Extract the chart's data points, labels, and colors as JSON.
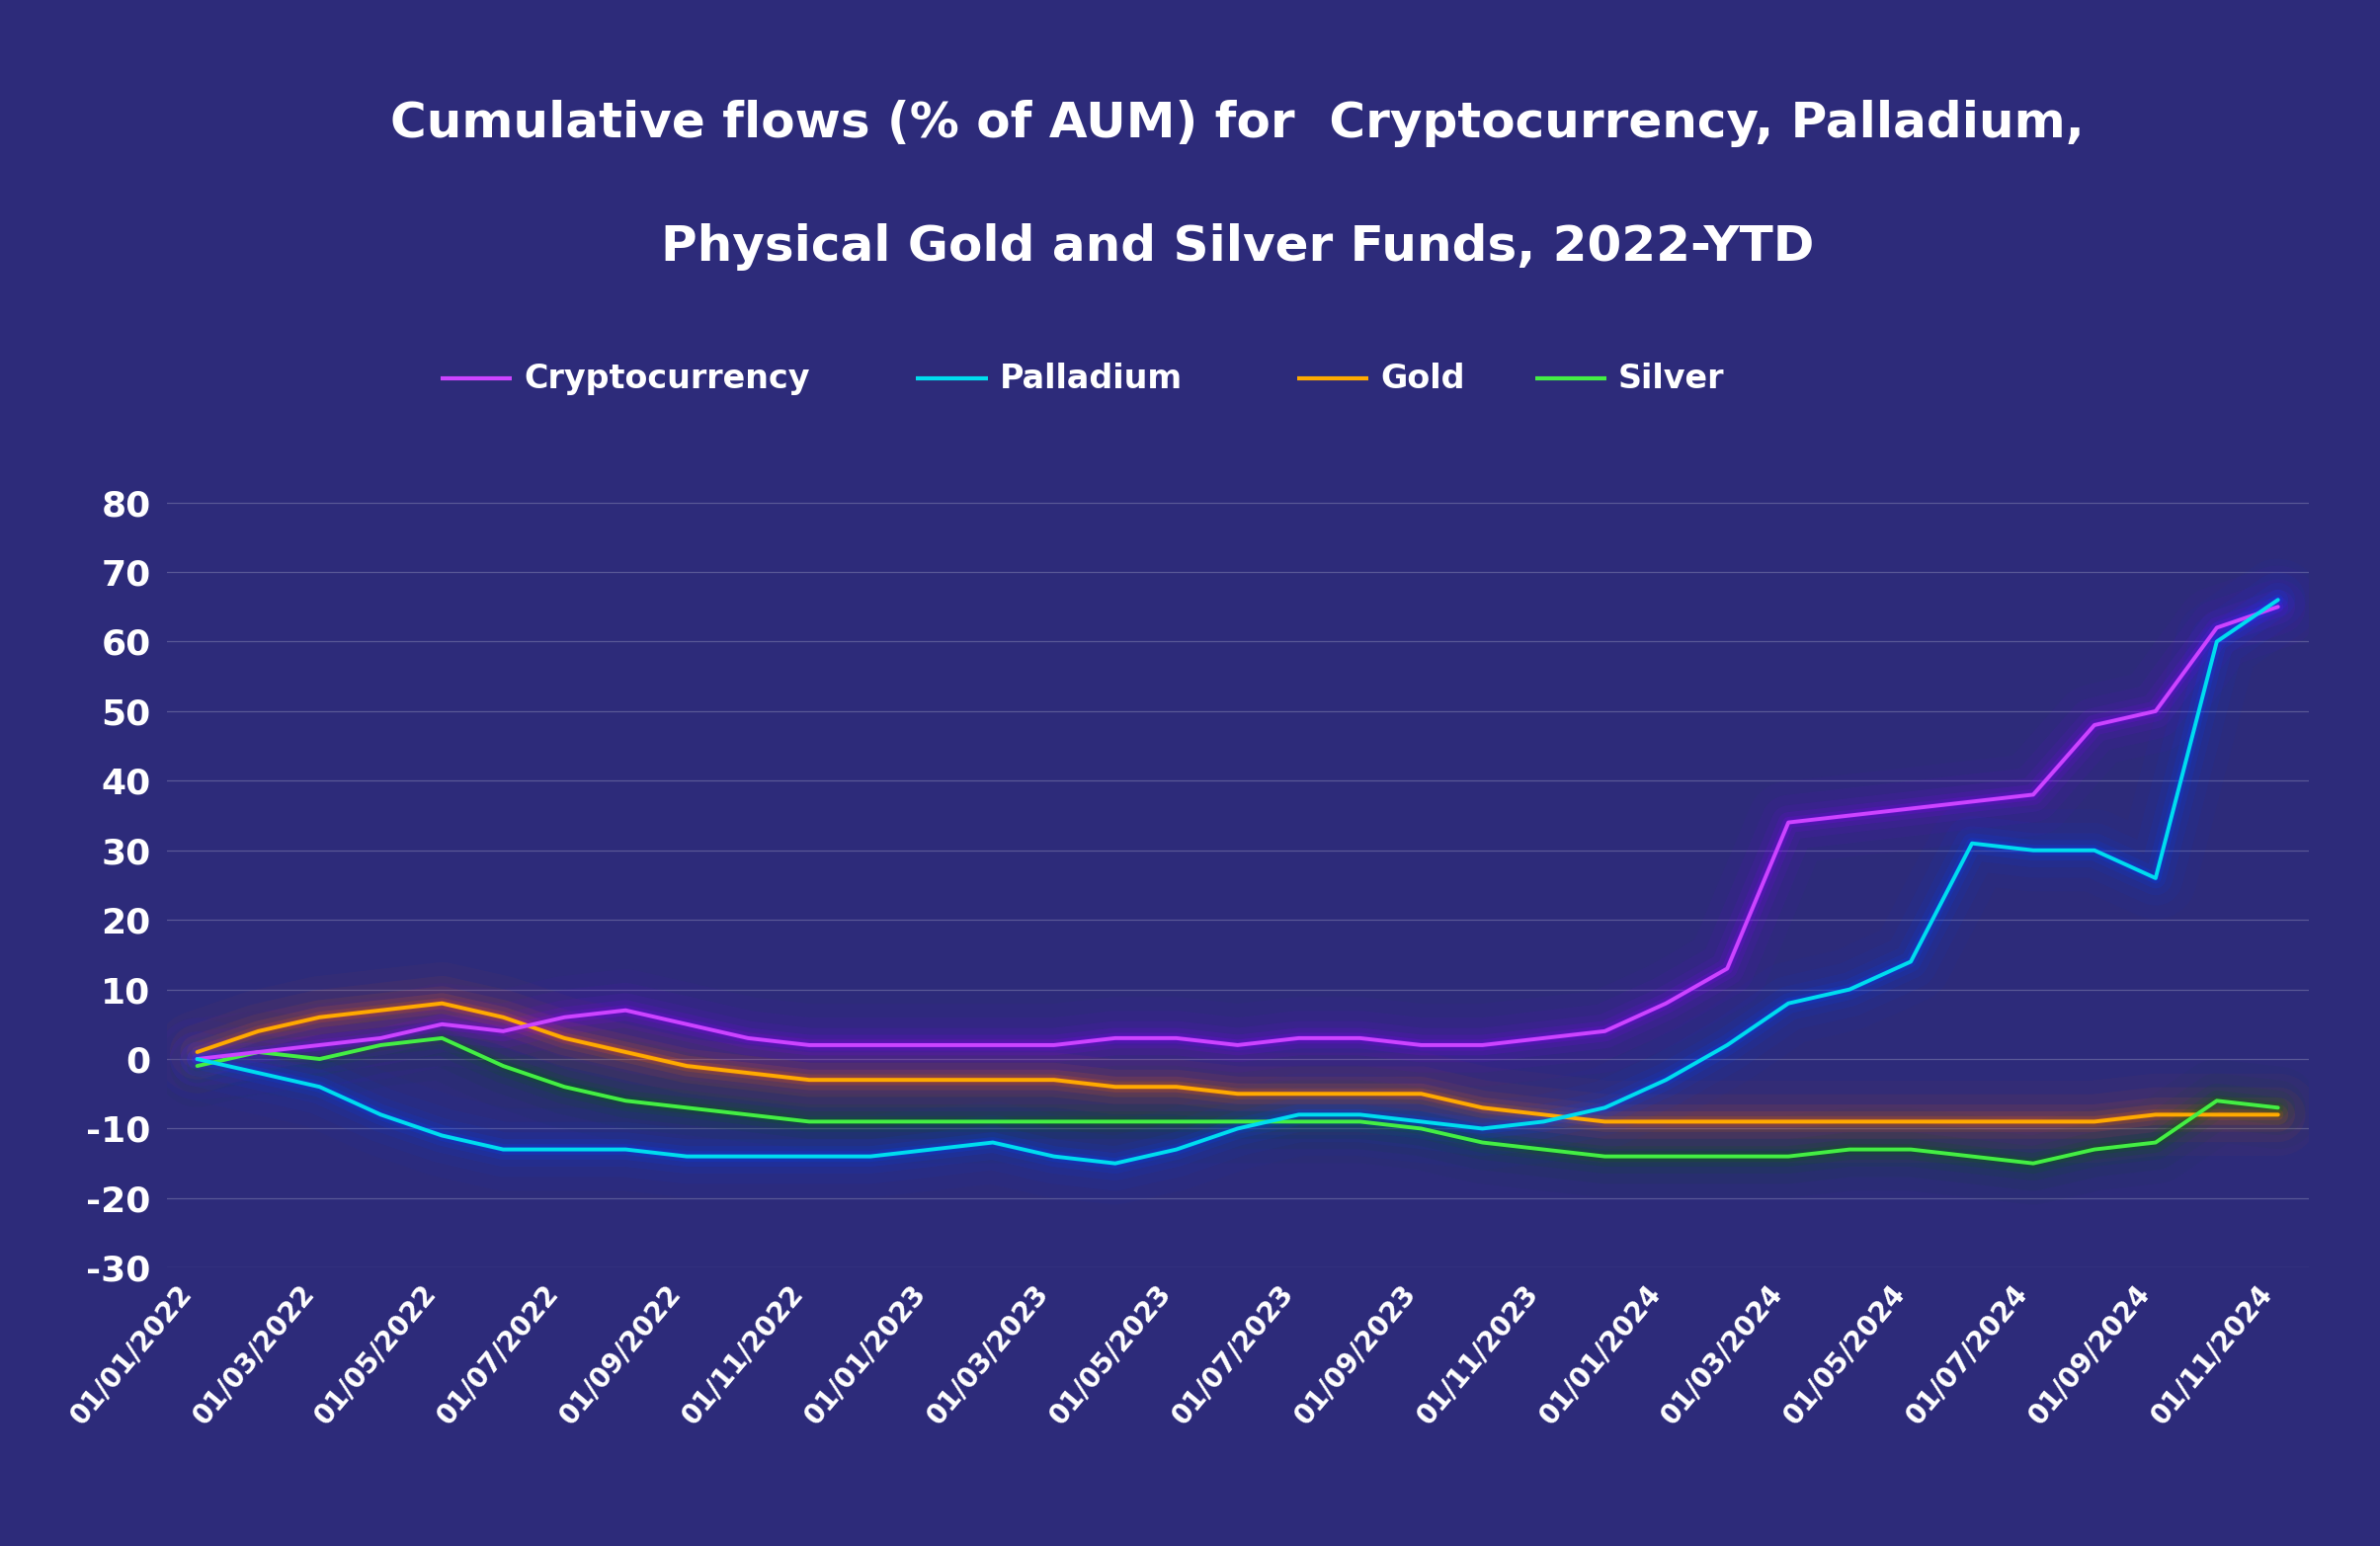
{
  "title_line1": "Cumulative flows (% of AUM) for  Cryptocurrency, Palladium,",
  "title_line2": "Physical Gold and Silver Funds, 2022-YTD",
  "background_color": "#2d2b7a",
  "plot_bg_color": "#2d2b7a",
  "grid_color": "#7777aa",
  "text_color": "#ffffff",
  "ylim": [
    -30,
    90
  ],
  "yticks": [
    -30,
    -20,
    -10,
    0,
    10,
    20,
    30,
    40,
    50,
    60,
    70,
    80
  ],
  "series": {
    "Cryptocurrency": {
      "color": "#cc44ff",
      "linewidth": 2.8
    },
    "Palladium": {
      "color": "#00ddee",
      "linewidth": 2.8
    },
    "Gold": {
      "color": "#ffaa00",
      "linewidth": 2.8
    },
    "Silver": {
      "color": "#44ee44",
      "linewidth": 2.8
    }
  },
  "dates": [
    "01/01/2022",
    "01/02/2022",
    "01/03/2022",
    "01/04/2022",
    "01/05/2022",
    "01/06/2022",
    "01/07/2022",
    "01/08/2022",
    "01/09/2022",
    "01/10/2022",
    "01/11/2022",
    "01/12/2022",
    "01/01/2023",
    "01/02/2023",
    "01/03/2023",
    "01/04/2023",
    "01/05/2023",
    "01/06/2023",
    "01/07/2023",
    "01/08/2023",
    "01/09/2023",
    "01/10/2023",
    "01/11/2023",
    "01/12/2023",
    "01/01/2024",
    "01/02/2024",
    "01/03/2024",
    "01/04/2024",
    "01/05/2024",
    "01/06/2024",
    "01/07/2024",
    "01/08/2024",
    "01/09/2024",
    "01/10/2024",
    "01/11/2024"
  ],
  "xtick_labels": [
    "01/01/2022",
    "01/03/2022",
    "01/05/2022",
    "01/07/2022",
    "01/09/2022",
    "01/11/2022",
    "01/01/2023",
    "01/03/2023",
    "01/05/2023",
    "01/07/2023",
    "01/09/2023",
    "01/11/2023",
    "01/01/2024",
    "01/03/2024",
    "01/05/2024",
    "01/07/2024",
    "01/09/2024",
    "01/11/2024"
  ],
  "crypto": [
    0,
    1,
    2,
    3,
    5,
    4,
    6,
    7,
    5,
    3,
    2,
    2,
    2,
    2,
    2,
    3,
    3,
    2,
    3,
    3,
    2,
    2,
    3,
    4,
    8,
    13,
    34,
    35,
    36,
    37,
    38,
    48,
    50,
    62,
    65
  ],
  "palladium": [
    0,
    -2,
    -4,
    -8,
    -11,
    -13,
    -13,
    -13,
    -14,
    -14,
    -14,
    -14,
    -13,
    -12,
    -14,
    -15,
    -13,
    -10,
    -8,
    -8,
    -9,
    -10,
    -9,
    -7,
    -3,
    2,
    8,
    10,
    14,
    31,
    30,
    30,
    26,
    60,
    66
  ],
  "gold": [
    1,
    4,
    6,
    7,
    8,
    6,
    3,
    1,
    -1,
    -2,
    -3,
    -3,
    -3,
    -3,
    -3,
    -4,
    -4,
    -5,
    -5,
    -5,
    -5,
    -7,
    -8,
    -9,
    -9,
    -9,
    -9,
    -9,
    -9,
    -9,
    -9,
    -9,
    -8,
    -8,
    -8
  ],
  "silver": [
    -1,
    1,
    0,
    2,
    3,
    -1,
    -4,
    -6,
    -7,
    -8,
    -9,
    -9,
    -9,
    -9,
    -9,
    -9,
    -9,
    -9,
    -9,
    -9,
    -10,
    -12,
    -13,
    -14,
    -14,
    -14,
    -14,
    -13,
    -13,
    -14,
    -15,
    -13,
    -12,
    -6,
    -7
  ]
}
